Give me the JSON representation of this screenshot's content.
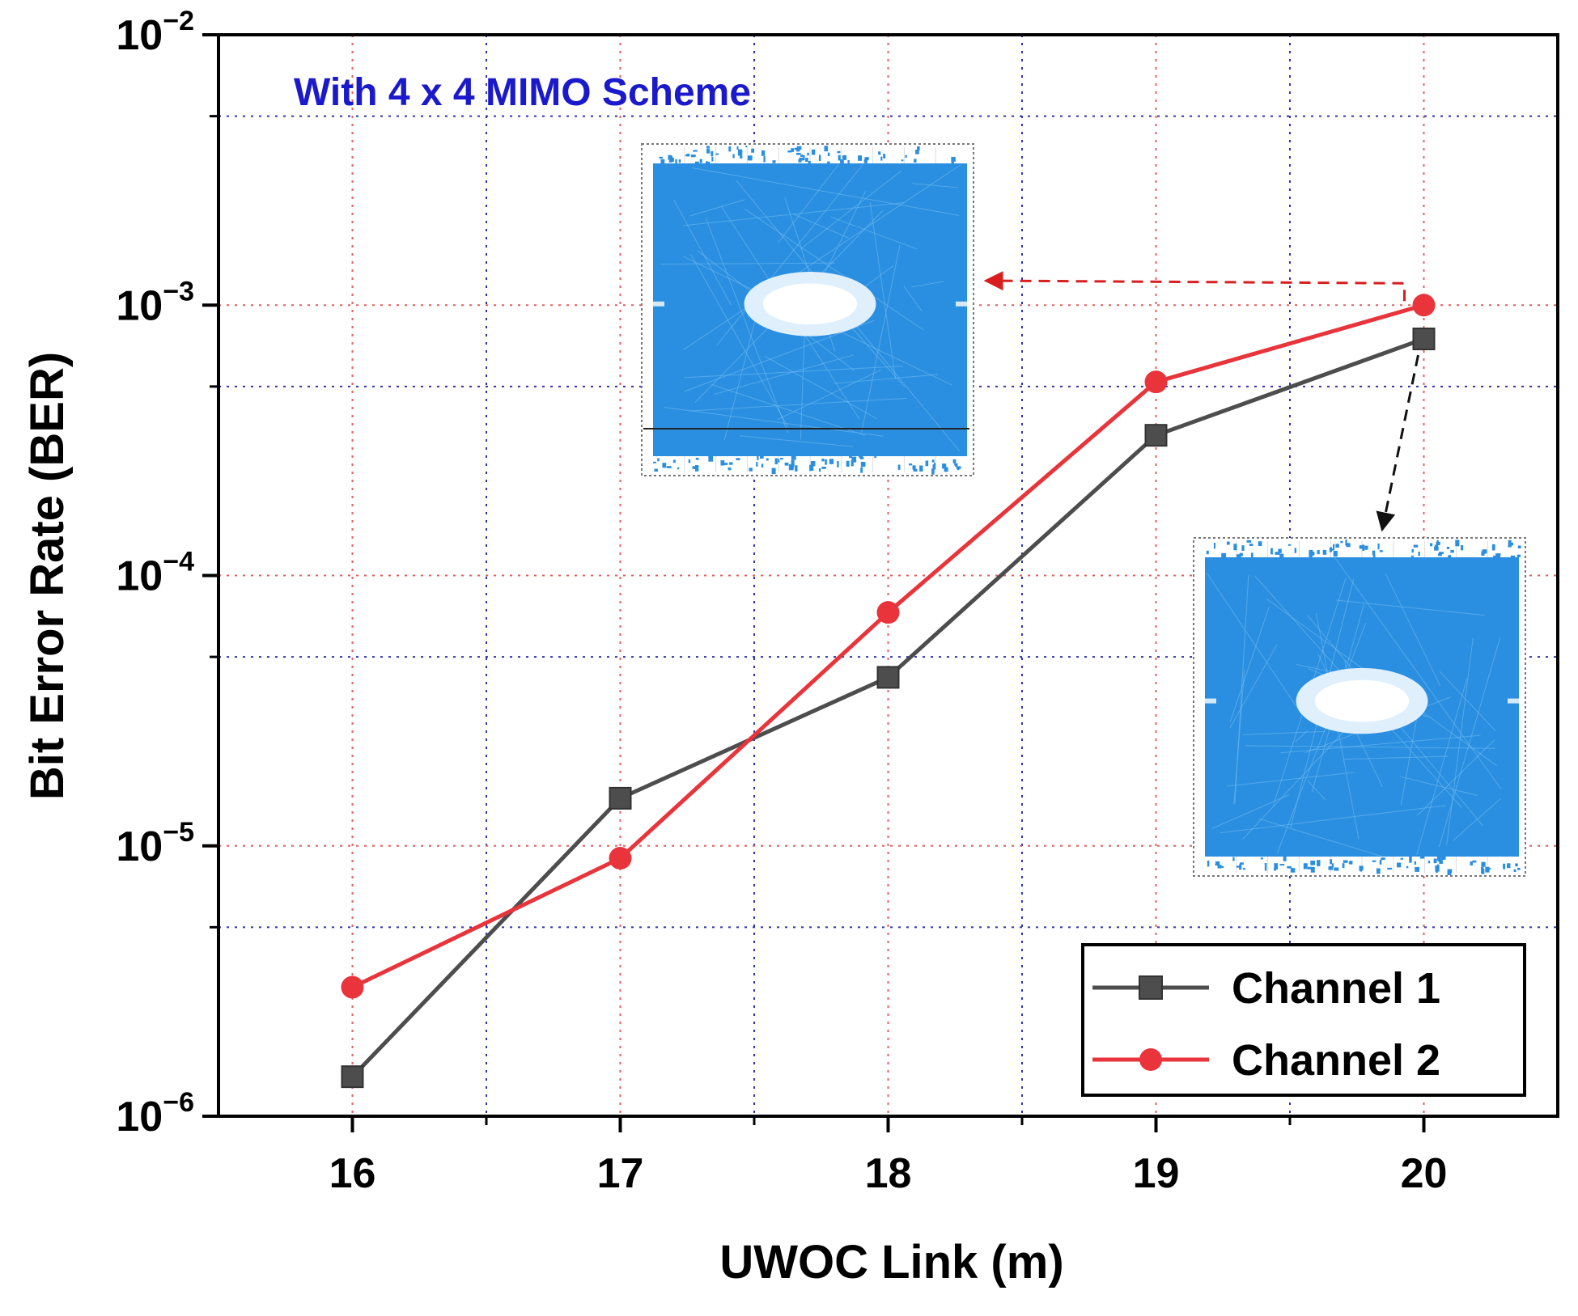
{
  "chart_data": {
    "type": "line",
    "title": "",
    "annotation": "With 4 x 4 MIMO Scheme",
    "xlabel": "UWOC Link (m)",
    "ylabel": "Bit Error Rate (BER)",
    "x": [
      16,
      17,
      18,
      19,
      20
    ],
    "xlim": [
      15.5,
      20.5
    ],
    "ylim": [
      1e-06,
      0.01
    ],
    "yscale": "log",
    "x_tick_labels": [
      "16",
      "17",
      "18",
      "19",
      "20"
    ],
    "y_tick_labels": [
      {
        "base": "10",
        "exp": "−6"
      },
      {
        "base": "10",
        "exp": "−5"
      },
      {
        "base": "10",
        "exp": "−4"
      },
      {
        "base": "10",
        "exp": "−3"
      },
      {
        "base": "10",
        "exp": "−2"
      }
    ],
    "grid": true,
    "legend_position": "bottom-right",
    "series": [
      {
        "name": "Channel 1",
        "values": [
          1.4e-06,
          1.5e-05,
          4.2e-05,
          0.00033,
          0.00075
        ],
        "color": "#4d4d4d",
        "marker": "square"
      },
      {
        "name": "Channel 2",
        "values": [
          3e-06,
          9e-06,
          7.3e-05,
          0.00052,
          0.001
        ],
        "color": "#e8343a",
        "marker": "circle"
      }
    ],
    "insets": [
      {
        "kind": "eye diagram",
        "linked_series": "Channel 2",
        "linked_x": 20
      },
      {
        "kind": "eye diagram",
        "linked_series": "Channel 1",
        "linked_x": 20
      }
    ]
  },
  "colors": {
    "annotation": "#1a1acc",
    "grid_red": "#e06060",
    "grid_blue": "#3333aa",
    "eye_blue": "#2a8fe0"
  }
}
